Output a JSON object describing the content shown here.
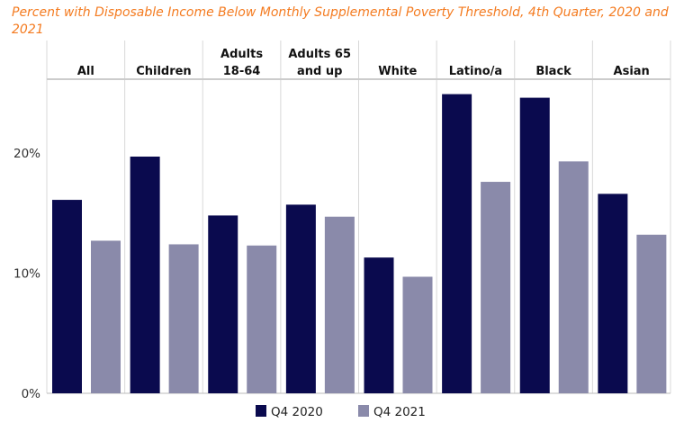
{
  "chart_data": {
    "type": "bar",
    "subtitle": "Percent with Disposable Income Below Monthly Supplemental Poverty Threshold, 4th Quarter, 2020 and 2021",
    "categories": [
      [
        "All"
      ],
      [
        "Children"
      ],
      [
        "Adults",
        "18-64"
      ],
      [
        "Adults 65",
        "and up"
      ],
      [
        "White"
      ],
      [
        "Latino/a"
      ],
      [
        "Black"
      ],
      [
        "Asian"
      ]
    ],
    "series": [
      {
        "name": "Q4 2020",
        "color": "#0a0a4e",
        "values": [
          16.1,
          19.7,
          14.8,
          15.7,
          11.3,
          24.9,
          24.6,
          16.6
        ]
      },
      {
        "name": "Q4 2021",
        "color": "#8a8aaa",
        "values": [
          12.7,
          12.4,
          12.3,
          14.7,
          9.7,
          17.6,
          19.3,
          13.2
        ]
      }
    ],
    "yticks": [
      "0%",
      "10%",
      "20%"
    ],
    "ylim": [
      0,
      26
    ],
    "legend": "bottom",
    "grid": false
  }
}
